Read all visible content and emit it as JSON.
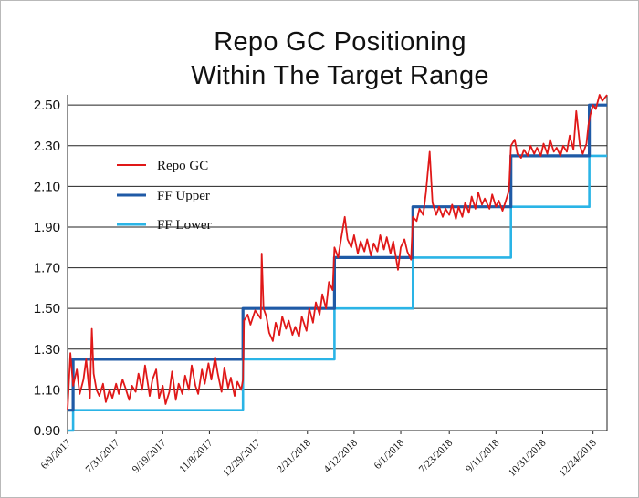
{
  "chart_data": {
    "type": "line",
    "title": "Repo GC Positioning",
    "subtitle": "Within The Target Range",
    "xlabel": "",
    "ylabel": "",
    "ylim": [
      0.9,
      2.55
    ],
    "yticks": [
      "0.90",
      "1.10",
      "1.30",
      "1.50",
      "1.70",
      "1.90",
      "2.10",
      "2.30",
      "2.50"
    ],
    "xlim": [
      "2017-06-09",
      "2019-01-08"
    ],
    "xticks": [
      {
        "label": "6/9/2017",
        "date": "2017-06-09"
      },
      {
        "label": "7/31/2017",
        "date": "2017-07-31"
      },
      {
        "label": "9/19/2017",
        "date": "2017-09-19"
      },
      {
        "label": "11/8/2017",
        "date": "2017-11-08"
      },
      {
        "label": "12/29/2017",
        "date": "2017-12-29"
      },
      {
        "label": "2/21/2018",
        "date": "2018-02-21"
      },
      {
        "label": "4/12/2018",
        "date": "2018-04-12"
      },
      {
        "label": "6/1/2018",
        "date": "2018-06-01"
      },
      {
        "label": "7/23/2018",
        "date": "2018-07-23"
      },
      {
        "label": "9/11/2018",
        "date": "2018-09-11"
      },
      {
        "label": "10/31/2018",
        "date": "2018-10-31"
      },
      {
        "label": "12/24/2018",
        "date": "2018-12-24"
      }
    ],
    "grid": "horizontal",
    "legend_position": "upper-left",
    "series": [
      {
        "name": "Repo GC",
        "color": "#e01818",
        "points": [
          [
            "2017-06-09",
            1.0
          ],
          [
            "2017-06-12",
            1.28
          ],
          [
            "2017-06-15",
            1.12
          ],
          [
            "2017-06-19",
            1.2
          ],
          [
            "2017-06-22",
            1.08
          ],
          [
            "2017-06-26",
            1.15
          ],
          [
            "2017-06-29",
            1.25
          ],
          [
            "2017-07-03",
            1.06
          ],
          [
            "2017-07-05",
            1.4
          ],
          [
            "2017-07-07",
            1.18
          ],
          [
            "2017-07-10",
            1.1
          ],
          [
            "2017-07-13",
            1.07
          ],
          [
            "2017-07-17",
            1.13
          ],
          [
            "2017-07-20",
            1.04
          ],
          [
            "2017-07-24",
            1.1
          ],
          [
            "2017-07-27",
            1.06
          ],
          [
            "2017-07-31",
            1.13
          ],
          [
            "2017-08-03",
            1.08
          ],
          [
            "2017-08-07",
            1.15
          ],
          [
            "2017-08-10",
            1.11
          ],
          [
            "2017-08-14",
            1.05
          ],
          [
            "2017-08-17",
            1.12
          ],
          [
            "2017-08-21",
            1.09
          ],
          [
            "2017-08-24",
            1.18
          ],
          [
            "2017-08-28",
            1.1
          ],
          [
            "2017-08-31",
            1.22
          ],
          [
            "2017-09-05",
            1.07
          ],
          [
            "2017-09-08",
            1.15
          ],
          [
            "2017-09-12",
            1.2
          ],
          [
            "2017-09-15",
            1.06
          ],
          [
            "2017-09-19",
            1.12
          ],
          [
            "2017-09-22",
            1.03
          ],
          [
            "2017-09-26",
            1.09
          ],
          [
            "2017-09-29",
            1.19
          ],
          [
            "2017-10-03",
            1.05
          ],
          [
            "2017-10-06",
            1.13
          ],
          [
            "2017-10-10",
            1.08
          ],
          [
            "2017-10-13",
            1.17
          ],
          [
            "2017-10-17",
            1.1
          ],
          [
            "2017-10-20",
            1.22
          ],
          [
            "2017-10-24",
            1.12
          ],
          [
            "2017-10-27",
            1.08
          ],
          [
            "2017-10-31",
            1.2
          ],
          [
            "2017-11-03",
            1.13
          ],
          [
            "2017-11-07",
            1.23
          ],
          [
            "2017-11-10",
            1.15
          ],
          [
            "2017-11-14",
            1.26
          ],
          [
            "2017-11-17",
            1.18
          ],
          [
            "2017-11-21",
            1.09
          ],
          [
            "2017-11-24",
            1.21
          ],
          [
            "2017-11-28",
            1.11
          ],
          [
            "2017-12-01",
            1.16
          ],
          [
            "2017-12-05",
            1.07
          ],
          [
            "2017-12-08",
            1.14
          ],
          [
            "2017-12-12",
            1.1
          ],
          [
            "2017-12-14",
            1.15
          ],
          [
            "2017-12-15",
            1.44
          ],
          [
            "2017-12-19",
            1.47
          ],
          [
            "2017-12-22",
            1.42
          ],
          [
            "2017-12-27",
            1.49
          ],
          [
            "2018-01-02",
            1.45
          ],
          [
            "2018-01-03",
            1.77
          ],
          [
            "2018-01-05",
            1.5
          ],
          [
            "2018-01-08",
            1.46
          ],
          [
            "2018-01-11",
            1.38
          ],
          [
            "2018-01-15",
            1.34
          ],
          [
            "2018-01-18",
            1.43
          ],
          [
            "2018-01-22",
            1.37
          ],
          [
            "2018-01-25",
            1.46
          ],
          [
            "2018-01-29",
            1.4
          ],
          [
            "2018-02-01",
            1.44
          ],
          [
            "2018-02-05",
            1.37
          ],
          [
            "2018-02-08",
            1.41
          ],
          [
            "2018-02-12",
            1.36
          ],
          [
            "2018-02-15",
            1.46
          ],
          [
            "2018-02-20",
            1.39
          ],
          [
            "2018-02-23",
            1.5
          ],
          [
            "2018-02-27",
            1.43
          ],
          [
            "2018-03-02",
            1.53
          ],
          [
            "2018-03-06",
            1.47
          ],
          [
            "2018-03-09",
            1.57
          ],
          [
            "2018-03-13",
            1.5
          ],
          [
            "2018-03-16",
            1.63
          ],
          [
            "2018-03-20",
            1.59
          ],
          [
            "2018-03-22",
            1.8
          ],
          [
            "2018-03-26",
            1.75
          ],
          [
            "2018-03-29",
            1.84
          ],
          [
            "2018-04-02",
            1.95
          ],
          [
            "2018-04-05",
            1.84
          ],
          [
            "2018-04-09",
            1.8
          ],
          [
            "2018-04-12",
            1.86
          ],
          [
            "2018-04-16",
            1.77
          ],
          [
            "2018-04-19",
            1.83
          ],
          [
            "2018-04-23",
            1.78
          ],
          [
            "2018-04-26",
            1.84
          ],
          [
            "2018-04-30",
            1.76
          ],
          [
            "2018-05-03",
            1.82
          ],
          [
            "2018-05-07",
            1.78
          ],
          [
            "2018-05-10",
            1.86
          ],
          [
            "2018-05-14",
            1.79
          ],
          [
            "2018-05-17",
            1.85
          ],
          [
            "2018-05-21",
            1.77
          ],
          [
            "2018-05-24",
            1.83
          ],
          [
            "2018-05-29",
            1.69
          ],
          [
            "2018-06-01",
            1.8
          ],
          [
            "2018-06-05",
            1.84
          ],
          [
            "2018-06-08",
            1.78
          ],
          [
            "2018-06-12",
            1.74
          ],
          [
            "2018-06-14",
            1.95
          ],
          [
            "2018-06-18",
            1.93
          ],
          [
            "2018-06-21",
            1.99
          ],
          [
            "2018-06-25",
            1.96
          ],
          [
            "2018-06-28",
            2.07
          ],
          [
            "2018-07-02",
            2.27
          ],
          [
            "2018-07-05",
            2.02
          ],
          [
            "2018-07-09",
            1.96
          ],
          [
            "2018-07-12",
            2.0
          ],
          [
            "2018-07-16",
            1.95
          ],
          [
            "2018-07-19",
            1.99
          ],
          [
            "2018-07-23",
            1.96
          ],
          [
            "2018-07-26",
            2.01
          ],
          [
            "2018-07-30",
            1.94
          ],
          [
            "2018-08-02",
            2.0
          ],
          [
            "2018-08-06",
            1.95
          ],
          [
            "2018-08-09",
            2.02
          ],
          [
            "2018-08-13",
            1.97
          ],
          [
            "2018-08-16",
            2.05
          ],
          [
            "2018-08-20",
            1.99
          ],
          [
            "2018-08-23",
            2.07
          ],
          [
            "2018-08-27",
            2.01
          ],
          [
            "2018-08-30",
            2.04
          ],
          [
            "2018-09-04",
            1.99
          ],
          [
            "2018-09-07",
            2.06
          ],
          [
            "2018-09-11",
            2.0
          ],
          [
            "2018-09-14",
            2.03
          ],
          [
            "2018-09-18",
            1.98
          ],
          [
            "2018-09-21",
            2.02
          ],
          [
            "2018-09-25",
            2.08
          ],
          [
            "2018-09-27",
            2.3
          ],
          [
            "2018-10-01",
            2.33
          ],
          [
            "2018-10-04",
            2.26
          ],
          [
            "2018-10-08",
            2.24
          ],
          [
            "2018-10-11",
            2.28
          ],
          [
            "2018-10-15",
            2.25
          ],
          [
            "2018-10-18",
            2.3
          ],
          [
            "2018-10-22",
            2.26
          ],
          [
            "2018-10-25",
            2.29
          ],
          [
            "2018-10-29",
            2.25
          ],
          [
            "2018-11-01",
            2.31
          ],
          [
            "2018-11-05",
            2.26
          ],
          [
            "2018-11-08",
            2.33
          ],
          [
            "2018-11-12",
            2.27
          ],
          [
            "2018-11-15",
            2.29
          ],
          [
            "2018-11-19",
            2.25
          ],
          [
            "2018-11-22",
            2.3
          ],
          [
            "2018-11-26",
            2.27
          ],
          [
            "2018-11-29",
            2.35
          ],
          [
            "2018-12-03",
            2.28
          ],
          [
            "2018-12-06",
            2.47
          ],
          [
            "2018-12-10",
            2.3
          ],
          [
            "2018-12-13",
            2.26
          ],
          [
            "2018-12-17",
            2.31
          ],
          [
            "2018-12-19",
            2.4
          ],
          [
            "2018-12-21",
            2.45
          ],
          [
            "2018-12-24",
            2.5
          ],
          [
            "2018-12-27",
            2.48
          ],
          [
            "2018-12-31",
            2.55
          ],
          [
            "2019-01-03",
            2.52
          ],
          [
            "2019-01-08",
            2.55
          ]
        ]
      },
      {
        "name": "FF Upper",
        "color": "#1f5aa6",
        "points": [
          [
            "2017-06-09",
            1.0
          ],
          [
            "2017-06-15",
            1.0
          ],
          [
            "2017-06-15",
            1.25
          ],
          [
            "2017-12-14",
            1.25
          ],
          [
            "2017-12-14",
            1.5
          ],
          [
            "2018-03-22",
            1.5
          ],
          [
            "2018-03-22",
            1.75
          ],
          [
            "2018-06-14",
            1.75
          ],
          [
            "2018-06-14",
            2.0
          ],
          [
            "2018-09-27",
            2.0
          ],
          [
            "2018-09-27",
            2.25
          ],
          [
            "2018-12-20",
            2.25
          ],
          [
            "2018-12-20",
            2.5
          ],
          [
            "2019-01-08",
            2.5
          ]
        ]
      },
      {
        "name": "FF Lower",
        "color": "#2ab4e6",
        "points": [
          [
            "2017-06-09",
            0.9
          ],
          [
            "2017-06-15",
            0.9
          ],
          [
            "2017-06-15",
            1.0
          ],
          [
            "2017-12-14",
            1.0
          ],
          [
            "2017-12-14",
            1.25
          ],
          [
            "2018-03-22",
            1.25
          ],
          [
            "2018-03-22",
            1.5
          ],
          [
            "2018-06-14",
            1.5
          ],
          [
            "2018-06-14",
            1.75
          ],
          [
            "2018-09-27",
            1.75
          ],
          [
            "2018-09-27",
            2.0
          ],
          [
            "2018-12-20",
            2.0
          ],
          [
            "2018-12-20",
            2.25
          ],
          [
            "2019-01-08",
            2.25
          ]
        ]
      }
    ]
  }
}
